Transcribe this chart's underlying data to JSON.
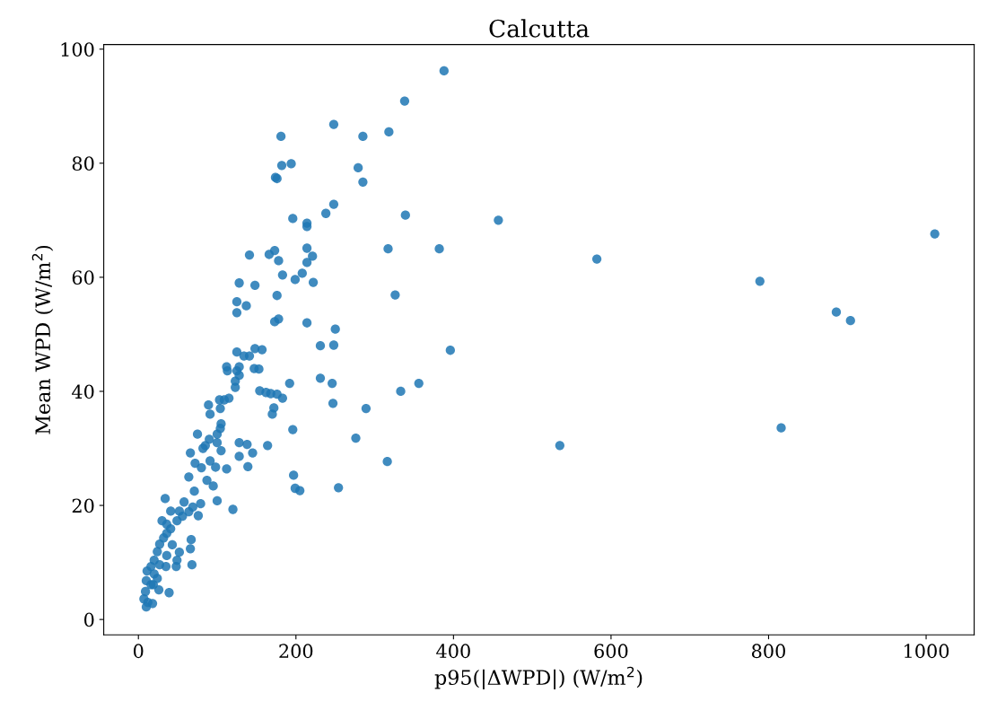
{
  "chart_data": {
    "type": "scatter",
    "title": "Calcutta",
    "xlabel": "p95(|ΔWPD|) (W/m$^{2}$)",
    "ylabel": "Mean WPD (W/m$^{2}$)",
    "xlim": [
      -44,
      1061
    ],
    "ylim": [
      -2.7,
      100.8
    ],
    "xticks": [
      0,
      200,
      400,
      600,
      800,
      1000
    ],
    "yticks": [
      0,
      20,
      40,
      60,
      80,
      100
    ],
    "grid": false,
    "marker": "circle",
    "series": [
      {
        "color": "#1f77b4",
        "x": [
          388,
          338,
          248,
          318,
          285,
          181,
          182,
          194,
          279,
          174,
          176,
          285,
          248,
          238,
          339,
          457,
          196,
          214,
          214,
          1011,
          317,
          382,
          214,
          173,
          166,
          141,
          178,
          221,
          214,
          582,
          183,
          208,
          199,
          222,
          128,
          148,
          789,
          176,
          326,
          125,
          137,
          125,
          886,
          904,
          178,
          173,
          214,
          250,
          248,
          231,
          148,
          157,
          125,
          396,
          134,
          141,
          112,
          113,
          128,
          125,
          128,
          147,
          153,
          231,
          246,
          192,
          356,
          154,
          162,
          168,
          176,
          183,
          123,
          123,
          115,
          109,
          333,
          247,
          289,
          172,
          170,
          89,
          91,
          103,
          104,
          105,
          104,
          196,
          100,
          75,
          276,
          90,
          128,
          138,
          100,
          164,
          535,
          816,
          85,
          82,
          66,
          145,
          105,
          316,
          128,
          91,
          72,
          80,
          112,
          139,
          98,
          64,
          197,
          87,
          95,
          199,
          205,
          254,
          71,
          100,
          120,
          79,
          34,
          7,
          10,
          12,
          18,
          19,
          26,
          39,
          9,
          10,
          11,
          16,
          20,
          24,
          27,
          32,
          36,
          41,
          49,
          56,
          64,
          30,
          27,
          35,
          48,
          49,
          52,
          67,
          66,
          68,
          43,
          36,
          52,
          41,
          58,
          69,
          76,
          36,
          20,
          24,
          16
        ],
        "values": [
          96.2,
          90.9,
          86.8,
          85.5,
          84.7,
          84.7,
          79.6,
          79.9,
          79.2,
          77.5,
          77.3,
          76.7,
          72.8,
          71.2,
          70.9,
          70.0,
          70.3,
          69.5,
          68.9,
          67.6,
          65.0,
          65.0,
          65.1,
          64.7,
          64.0,
          63.9,
          62.9,
          63.7,
          62.6,
          63.2,
          60.4,
          60.7,
          59.6,
          59.1,
          59.0,
          58.6,
          59.3,
          56.8,
          56.9,
          55.7,
          55.0,
          53.8,
          53.9,
          52.4,
          52.7,
          52.2,
          52.0,
          50.9,
          48.1,
          48.0,
          47.5,
          47.3,
          46.9,
          47.2,
          46.2,
          46.2,
          44.3,
          43.6,
          44.3,
          43.6,
          42.8,
          44.0,
          43.9,
          42.3,
          41.4,
          41.4,
          41.4,
          40.1,
          39.8,
          39.6,
          39.5,
          38.8,
          41.8,
          40.7,
          38.8,
          38.5,
          40.0,
          37.9,
          37.0,
          37.1,
          36.0,
          37.6,
          36.0,
          38.5,
          37.0,
          34.3,
          33.5,
          33.3,
          32.5,
          32.5,
          31.8,
          31.6,
          31.0,
          30.7,
          31.0,
          30.5,
          30.5,
          33.6,
          30.5,
          30.0,
          29.2,
          29.2,
          29.6,
          27.7,
          28.6,
          27.8,
          27.4,
          26.6,
          26.4,
          26.8,
          26.7,
          25.0,
          25.3,
          24.4,
          23.4,
          23.0,
          22.6,
          23.1,
          22.5,
          20.8,
          19.3,
          20.3,
          21.2,
          3.6,
          2.2,
          3.0,
          2.8,
          6.1,
          5.2,
          4.7,
          4.9,
          6.8,
          8.5,
          9.3,
          10.4,
          11.9,
          13.2,
          14.3,
          15.1,
          15.9,
          17.3,
          18.1,
          18.9,
          17.3,
          9.6,
          9.3,
          9.3,
          10.4,
          11.8,
          14.0,
          12.4,
          9.6,
          13.1,
          11.2,
          19.0,
          19.0,
          20.6,
          19.7,
          18.2,
          16.7,
          8.0,
          7.2,
          6.1
        ]
      }
    ]
  }
}
